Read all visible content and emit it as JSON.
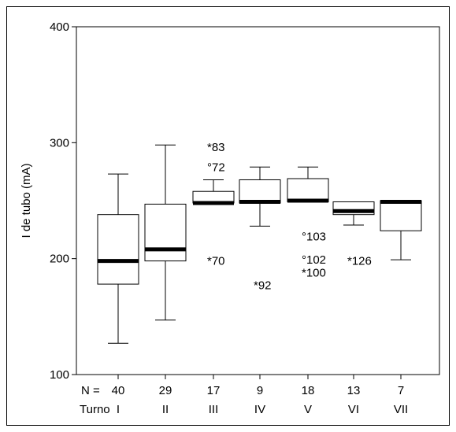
{
  "chart_data": {
    "type": "box",
    "ylabel": "I de tubo (mA)",
    "ylim": [
      100,
      400
    ],
    "yticks": [
      100,
      200,
      300,
      400
    ],
    "n_label": "N =",
    "x_label": "Turno",
    "groups": [
      {
        "label": "I",
        "n": "40",
        "whisker_low": 127,
        "q1": 178,
        "median": 198,
        "q3": 238,
        "whisker_high": 273,
        "outliers": []
      },
      {
        "label": "II",
        "n": "29",
        "whisker_low": 147,
        "q1": 198,
        "median": 208,
        "q3": 247,
        "whisker_high": 298,
        "outliers": []
      },
      {
        "label": "III",
        "n": "17",
        "whisker_low": 248,
        "q1": 248,
        "median": 248,
        "q3": 258,
        "whisker_high": 268,
        "outliers": [
          {
            "symbol": "*",
            "case": "83",
            "value": 296
          },
          {
            "symbol": "°",
            "case": "72",
            "value": 279
          },
          {
            "symbol": "*",
            "case": "70",
            "value": 198
          }
        ]
      },
      {
        "label": "IV",
        "n": "9",
        "whisker_low": 228,
        "q1": 248,
        "median": 249,
        "q3": 268,
        "whisker_high": 279,
        "outliers": [
          {
            "symbol": "*",
            "case": "92",
            "value": 177
          }
        ]
      },
      {
        "label": "V",
        "n": "18",
        "whisker_low": 249,
        "q1": 249,
        "median": 250,
        "q3": 269,
        "whisker_high": 279,
        "outliers": [
          {
            "symbol": "°",
            "case": "103",
            "value": 219
          },
          {
            "symbol": "°",
            "case": "102",
            "value": 199
          },
          {
            "symbol": "*",
            "case": "100",
            "value": 188
          }
        ]
      },
      {
        "label": "VI",
        "n": "13",
        "whisker_low": 229,
        "q1": 238,
        "median": 241,
        "q3": 249,
        "whisker_high": 249,
        "outliers": [
          {
            "symbol": "*",
            "case": "126",
            "value": 198
          }
        ]
      },
      {
        "label": "VII",
        "n": "7",
        "whisker_low": 199,
        "q1": 224,
        "median": 249,
        "q3": 250,
        "whisker_high": 250,
        "outliers": []
      }
    ]
  }
}
